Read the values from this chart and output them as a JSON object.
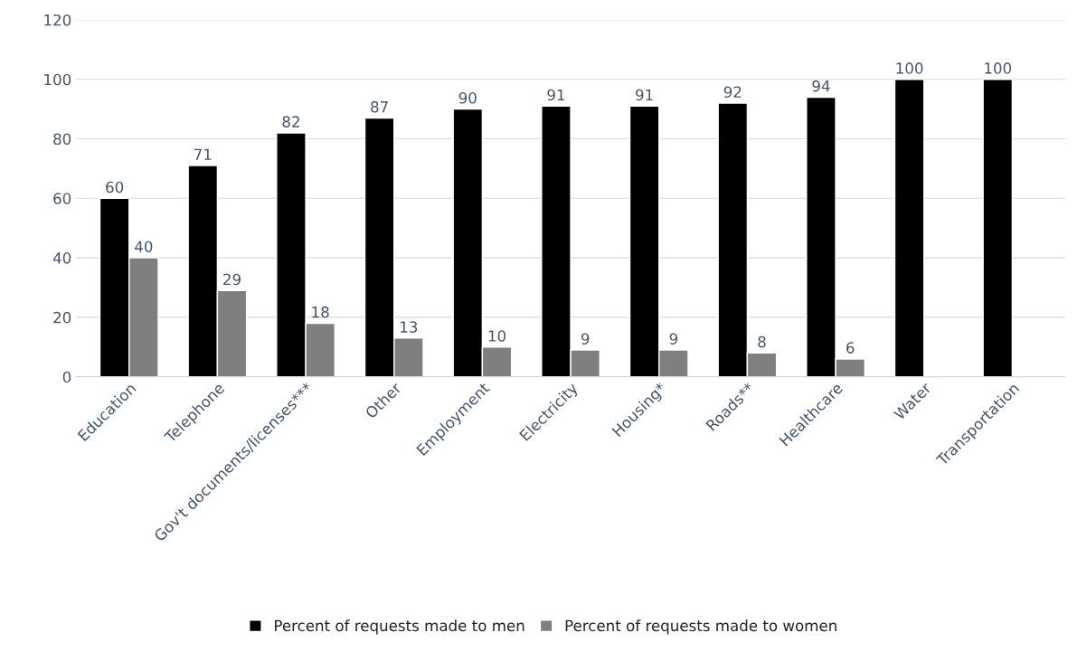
{
  "chart_data": {
    "type": "bar",
    "categories": [
      "Education",
      "Telephone",
      "Gov't documents/licenses***",
      "Other",
      "Employment",
      "Electricity",
      "Housing*",
      "Roads**",
      "Healthcare",
      "Water",
      "Transportation"
    ],
    "series": [
      {
        "name": "Percent of requests made to men",
        "color": "#000000",
        "values": [
          60,
          71,
          82,
          87,
          90,
          91,
          91,
          92,
          94,
          100,
          100
        ]
      },
      {
        "name": "Percent of requests made to women",
        "color": "#7f7f7f",
        "values": [
          40,
          29,
          18,
          13,
          10,
          9,
          9,
          8,
          6,
          null,
          null
        ]
      }
    ],
    "ylim": [
      0,
      120
    ],
    "yticks": [
      0,
      20,
      40,
      60,
      80,
      100,
      120
    ],
    "grid": "y",
    "legend": "bottom",
    "data_labels": true
  }
}
